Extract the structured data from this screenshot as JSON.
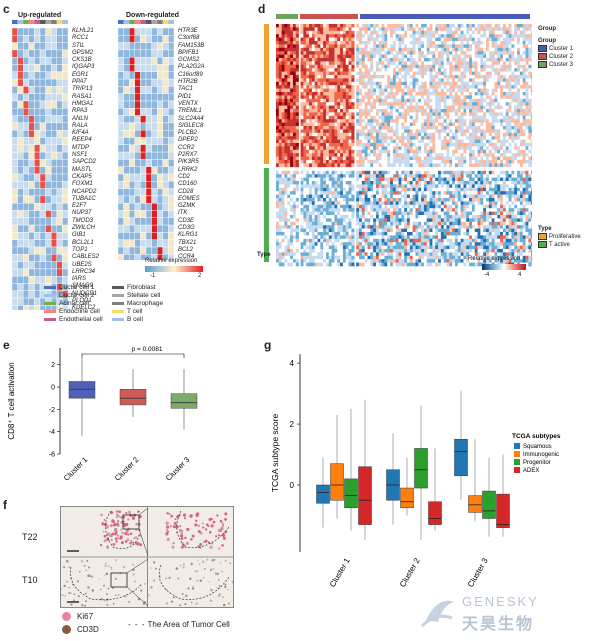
{
  "panels": {
    "c": "c",
    "d": "d",
    "e": "e",
    "f": "f",
    "g": "g"
  },
  "panel_c": {
    "title_up": "Up-regulated",
    "title_down": "Down-regulated",
    "genes_up": [
      "KLHL21",
      "RCC1",
      "STIL",
      "GPSM2",
      "CKS1B",
      "IQGAP3",
      "EGR1",
      "PPAT",
      "TRIP13",
      "RASA1",
      "HMGA1",
      "RPA3",
      "ANLN",
      "RALA",
      "KIF4A",
      "REEP4",
      "MTDP",
      "NSF1",
      "SAPCD2",
      "MASTL",
      "CKAP5",
      "FOXM1",
      "NCAPD2",
      "TUBA1C",
      "E2F7",
      "NUP37",
      "TMOD3",
      "ZWILCH",
      "GIB1",
      "BCL2L1",
      "TOP1",
      "CABLES2",
      "UBE2S",
      "LRRC34",
      "IARS",
      "SMAG9",
      "NUDCD1",
      "PLOD1",
      "KDELC2"
    ],
    "genes_down": [
      "HTR3E",
      "C3orf68",
      "FAM153B",
      "BPIFB1",
      "GCMS2",
      "PLA2G2A",
      "C16orf89",
      "HTR2B",
      "TAC1",
      "PID1",
      "VENTX",
      "TREML1",
      "SLC24A4",
      "SIGLEC8",
      "PLCB2",
      "DPEP2",
      "CCR2",
      "P2RX7",
      "PIK3R5",
      "LRRK2",
      "CD2",
      "CD160",
      "CD28",
      "EOMES",
      "GZMK",
      "ITK",
      "CD3E",
      "CD3G",
      "KLRG1",
      "TBX21",
      "BCL2",
      "CCR4"
    ],
    "colorbar_title": "Relative expression",
    "colorbar_ticks": [
      "-1",
      "2"
    ],
    "legend": [
      {
        "label": "Ductal cell 1",
        "color": "#4472c4"
      },
      {
        "label": "Ductal cell 2",
        "color": "#9dc3e6"
      },
      {
        "label": "Acinar cell",
        "color": "#70ad47"
      },
      {
        "label": "Endocrine cell",
        "color": "#ff7f7f"
      },
      {
        "label": "Endothelial cell",
        "color": "#c55a9d"
      },
      {
        "label": "Fibroblast",
        "color": "#595959"
      },
      {
        "label": "Stellate cell",
        "color": "#a6a6a6"
      },
      {
        "label": "Macrophage",
        "color": "#7f7f7f"
      },
      {
        "label": "T cell",
        "color": "#ffd966"
      },
      {
        "label": "B cell",
        "color": "#9dc3e6"
      }
    ]
  },
  "panel_d": {
    "legend_group_title": "Group",
    "legend_group_title2": "Group",
    "groups": [
      {
        "label": "Cluster 1",
        "color": "#4a5bb7"
      },
      {
        "label": "Cluster 2",
        "color": "#c9544f"
      },
      {
        "label": "Cluster 3",
        "color": "#6da35f"
      }
    ],
    "legend_type_title": "Type",
    "types": [
      {
        "label": "Proliferative",
        "color": "#f0a030"
      },
      {
        "label": "T active",
        "color": "#4caf50"
      }
    ],
    "row_label": "Type",
    "colorbar_title": "Relative expression",
    "colorbar_ticks": [
      "-4",
      "4"
    ]
  },
  "panel_e": {
    "ylabel": "CD8⁺ T cell activation",
    "p_text": "p = 0.0081",
    "chart_data": {
      "type": "box",
      "categories": [
        "Cluster 1",
        "Cluster 2",
        "Cluster 3"
      ],
      "yticks": [
        "2",
        "0",
        "-2",
        "-4",
        "-6"
      ],
      "ylim": [
        -6,
        3.5
      ],
      "boxes": [
        {
          "name": "Cluster 1",
          "color": "#5060b8",
          "min": -4.4,
          "q1": -1.0,
          "median": -0.2,
          "q3": 0.5,
          "max": 3.0
        },
        {
          "name": "Cluster 2",
          "color": "#d05a55",
          "min": -2.7,
          "q1": -1.6,
          "median": -1.0,
          "q3": -0.2,
          "max": 1.6
        },
        {
          "name": "Cluster 3",
          "color": "#7aab6b",
          "min": -3.8,
          "q1": -1.9,
          "median": -1.4,
          "q3": -0.6,
          "max": 1.6
        }
      ]
    }
  },
  "panel_f": {
    "rows": [
      "T22",
      "T10"
    ],
    "legend": [
      {
        "label": "Ki67",
        "color": "#e5849c"
      },
      {
        "label": "CD3D",
        "color": "#8b5a3c"
      }
    ],
    "dash_label": "The Area of Tumor Cell"
  },
  "panel_g": {
    "ylabel": "TCGA subtype score",
    "legend_title": "TCGA subtypes",
    "chart_data": {
      "type": "box",
      "categories": [
        "Cluster 1",
        "Cluster 2",
        "Cluster 3"
      ],
      "yticks": [
        "4",
        "2",
        "0"
      ],
      "ylim": [
        -2.2,
        4.3
      ],
      "series": [
        {
          "name": "Squamous",
          "color": "#1f77b4",
          "boxes": [
            {
              "min": -1.4,
              "q1": -0.6,
              "median": -0.25,
              "q3": 0.0,
              "max": 0.9
            },
            {
              "min": -1.3,
              "q1": -0.5,
              "median": 0.0,
              "q3": 0.5,
              "max": 1.7
            },
            {
              "min": -0.5,
              "q1": 0.3,
              "median": 1.1,
              "q3": 1.5,
              "max": 3.1
            }
          ]
        },
        {
          "name": "Immunogenic",
          "color": "#ff7f0e",
          "boxes": [
            {
              "min": -1.1,
              "q1": -0.5,
              "median": 0.0,
              "q3": 0.7,
              "max": 2.3
            },
            {
              "min": -1.0,
              "q1": -0.75,
              "median": -0.55,
              "q3": -0.1,
              "max": 0.9
            },
            {
              "min": -1.2,
              "q1": -0.9,
              "median": -0.65,
              "q3": -0.35,
              "max": 1.5
            }
          ]
        },
        {
          "name": "Progenitor",
          "color": "#2ca02c",
          "boxes": [
            {
              "min": -1.5,
              "q1": -0.75,
              "median": -0.35,
              "q3": 0.2,
              "max": 2.5
            },
            {
              "min": -1.8,
              "q1": -0.1,
              "median": 0.5,
              "q3": 1.2,
              "max": 2.6
            },
            {
              "min": -1.7,
              "q1": -1.1,
              "median": -0.85,
              "q3": -0.2,
              "max": 0.9
            }
          ]
        },
        {
          "name": "ADEX",
          "color": "#d62728",
          "boxes": [
            {
              "min": -1.8,
              "q1": -1.3,
              "median": -0.5,
              "q3": 0.6,
              "max": 2.8
            },
            {
              "min": -1.5,
              "q1": -1.3,
              "median": -1.1,
              "q3": -0.55,
              "max": 1.2
            },
            {
              "min": -1.7,
              "q1": -1.4,
              "median": -1.3,
              "q3": -0.3,
              "max": 1.0
            }
          ]
        }
      ]
    }
  },
  "watermark": {
    "en": "GENESKY",
    "zh": "天昊生物"
  }
}
